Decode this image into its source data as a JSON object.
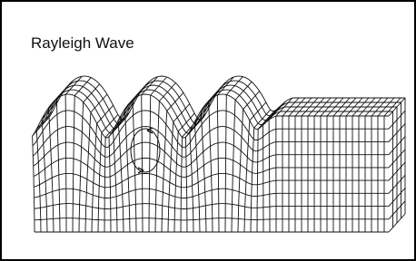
{
  "header": {
    "title": "Rayleigh Wave"
  }
}
